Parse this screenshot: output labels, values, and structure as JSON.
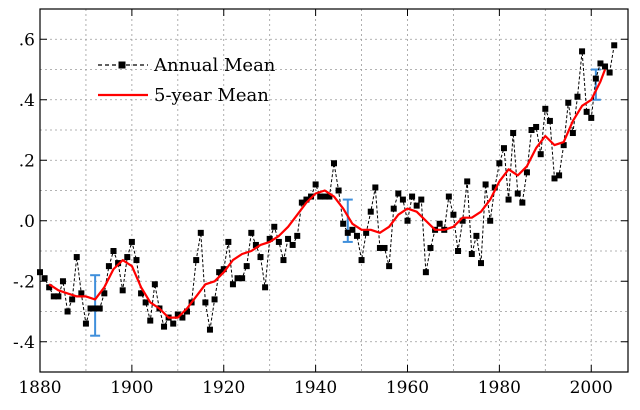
{
  "chart_data": {
    "type": "line",
    "title": "",
    "xlabel": "",
    "ylabel": "",
    "xlim": [
      1880,
      2008
    ],
    "ylim": [
      -0.5,
      0.7
    ],
    "grid": true,
    "legend_position": "top-left",
    "x_ticks": [
      {
        "value": 1880,
        "label": "1880"
      },
      {
        "value": 1900,
        "label": "1900"
      },
      {
        "value": 1920,
        "label": "1920"
      },
      {
        "value": 1940,
        "label": "1940"
      },
      {
        "value": 1960,
        "label": "1960"
      },
      {
        "value": 1980,
        "label": "1980"
      },
      {
        "value": 2000,
        "label": "2000"
      }
    ],
    "y_ticks": [
      {
        "value": 0.6,
        "label": ".6"
      },
      {
        "value": 0.4,
        "label": ".4"
      },
      {
        "value": 0.2,
        "label": ".2"
      },
      {
        "value": 0.0,
        "label": ".0"
      },
      {
        "value": -0.2,
        "label": "-.2"
      },
      {
        "value": -0.4,
        "label": "-.4"
      }
    ],
    "series": [
      {
        "name": "Annual Mean",
        "color": "#000000",
        "style": "dashed-with-square-markers",
        "x": [
          1880,
          1881,
          1882,
          1883,
          1884,
          1885,
          1886,
          1887,
          1888,
          1889,
          1890,
          1891,
          1892,
          1893,
          1894,
          1895,
          1896,
          1897,
          1898,
          1899,
          1900,
          1901,
          1902,
          1903,
          1904,
          1905,
          1906,
          1907,
          1908,
          1909,
          1910,
          1911,
          1912,
          1913,
          1914,
          1915,
          1916,
          1917,
          1918,
          1919,
          1920,
          1921,
          1922,
          1923,
          1924,
          1925,
          1926,
          1927,
          1928,
          1929,
          1930,
          1931,
          1932,
          1933,
          1934,
          1935,
          1936,
          1937,
          1938,
          1939,
          1940,
          1941,
          1942,
          1943,
          1944,
          1945,
          1946,
          1947,
          1948,
          1949,
          1950,
          1951,
          1952,
          1953,
          1954,
          1955,
          1956,
          1957,
          1958,
          1959,
          1960,
          1961,
          1962,
          1963,
          1964,
          1965,
          1966,
          1967,
          1968,
          1969,
          1970,
          1971,
          1972,
          1973,
          1974,
          1975,
          1976,
          1977,
          1978,
          1979,
          1980,
          1981,
          1982,
          1983,
          1984,
          1985,
          1986,
          1987,
          1988,
          1989,
          1990,
          1991,
          1992,
          1993,
          1994,
          1995,
          1996,
          1997,
          1998,
          1999,
          2000,
          2001,
          2002,
          2003,
          2004,
          2005
        ],
        "values": [
          -0.17,
          -0.19,
          -0.22,
          -0.25,
          -0.25,
          -0.2,
          -0.3,
          -0.26,
          -0.12,
          -0.24,
          -0.34,
          -0.29,
          -0.29,
          -0.29,
          -0.24,
          -0.15,
          -0.1,
          -0.14,
          -0.23,
          -0.12,
          -0.07,
          -0.13,
          -0.24,
          -0.27,
          -0.33,
          -0.21,
          -0.29,
          -0.35,
          -0.32,
          -0.34,
          -0.31,
          -0.32,
          -0.3,
          -0.27,
          -0.13,
          -0.04,
          -0.27,
          -0.36,
          -0.26,
          -0.17,
          -0.16,
          -0.07,
          -0.21,
          -0.19,
          -0.19,
          -0.15,
          -0.04,
          -0.08,
          -0.12,
          -0.22,
          -0.06,
          -0.02,
          -0.07,
          -0.13,
          -0.06,
          -0.08,
          -0.05,
          0.06,
          0.07,
          0.08,
          0.12,
          0.08,
          0.08,
          0.08,
          0.19,
          0.1,
          -0.01,
          -0.04,
          -0.03,
          -0.05,
          -0.13,
          -0.04,
          0.03,
          0.11,
          -0.09,
          -0.09,
          -0.15,
          0.04,
          0.09,
          0.07,
          0.0,
          0.08,
          0.05,
          0.07,
          -0.17,
          -0.09,
          -0.03,
          -0.01,
          -0.03,
          0.08,
          0.02,
          -0.1,
          0.0,
          0.13,
          -0.11,
          -0.05,
          -0.14,
          0.12,
          0.0,
          0.11,
          0.19,
          0.24,
          0.07,
          0.29,
          0.09,
          0.06,
          0.16,
          0.3,
          0.31,
          0.22,
          0.37,
          0.33,
          0.14,
          0.15,
          0.25,
          0.39,
          0.29,
          0.41,
          0.56,
          0.36,
          0.34,
          0.47,
          0.52,
          0.51,
          0.49,
          0.58
        ]
      },
      {
        "name": "5-year Mean",
        "color": "#ff0000",
        "style": "solid",
        "x": [
          1882,
          1884,
          1886,
          1888,
          1890,
          1892,
          1894,
          1896,
          1898,
          1900,
          1902,
          1904,
          1906,
          1908,
          1910,
          1912,
          1914,
          1916,
          1918,
          1920,
          1922,
          1924,
          1926,
          1928,
          1930,
          1932,
          1934,
          1936,
          1938,
          1940,
          1942,
          1944,
          1946,
          1948,
          1950,
          1952,
          1954,
          1956,
          1958,
          1960,
          1962,
          1964,
          1966,
          1968,
          1970,
          1972,
          1974,
          1976,
          1978,
          1980,
          1982,
          1984,
          1986,
          1988,
          1990,
          1992,
          1994,
          1996,
          1998,
          2000,
          2002,
          2003
        ],
        "values": [
          -0.21,
          -0.23,
          -0.24,
          -0.25,
          -0.25,
          -0.26,
          -0.22,
          -0.16,
          -0.13,
          -0.15,
          -0.22,
          -0.27,
          -0.29,
          -0.32,
          -0.32,
          -0.29,
          -0.25,
          -0.21,
          -0.2,
          -0.17,
          -0.13,
          -0.11,
          -0.1,
          -0.08,
          -0.07,
          -0.05,
          -0.02,
          0.02,
          0.06,
          0.09,
          0.1,
          0.08,
          0.04,
          -0.01,
          -0.03,
          -0.03,
          -0.04,
          -0.02,
          0.02,
          0.04,
          0.03,
          0.0,
          -0.03,
          -0.03,
          -0.02,
          0.01,
          0.01,
          0.03,
          0.07,
          0.13,
          0.17,
          0.15,
          0.18,
          0.24,
          0.28,
          0.25,
          0.26,
          0.33,
          0.38,
          0.4,
          0.46,
          0.5
        ]
      }
    ],
    "error_bars": [
      {
        "color": "#3f8fdb",
        "x": 1892,
        "low": -0.38,
        "high": -0.18
      },
      {
        "color": "#3f8fdb",
        "x": 1947,
        "low": -0.07,
        "high": 0.07
      },
      {
        "color": "#3f8fdb",
        "x": 2001,
        "low": 0.4,
        "high": 0.5
      }
    ]
  }
}
